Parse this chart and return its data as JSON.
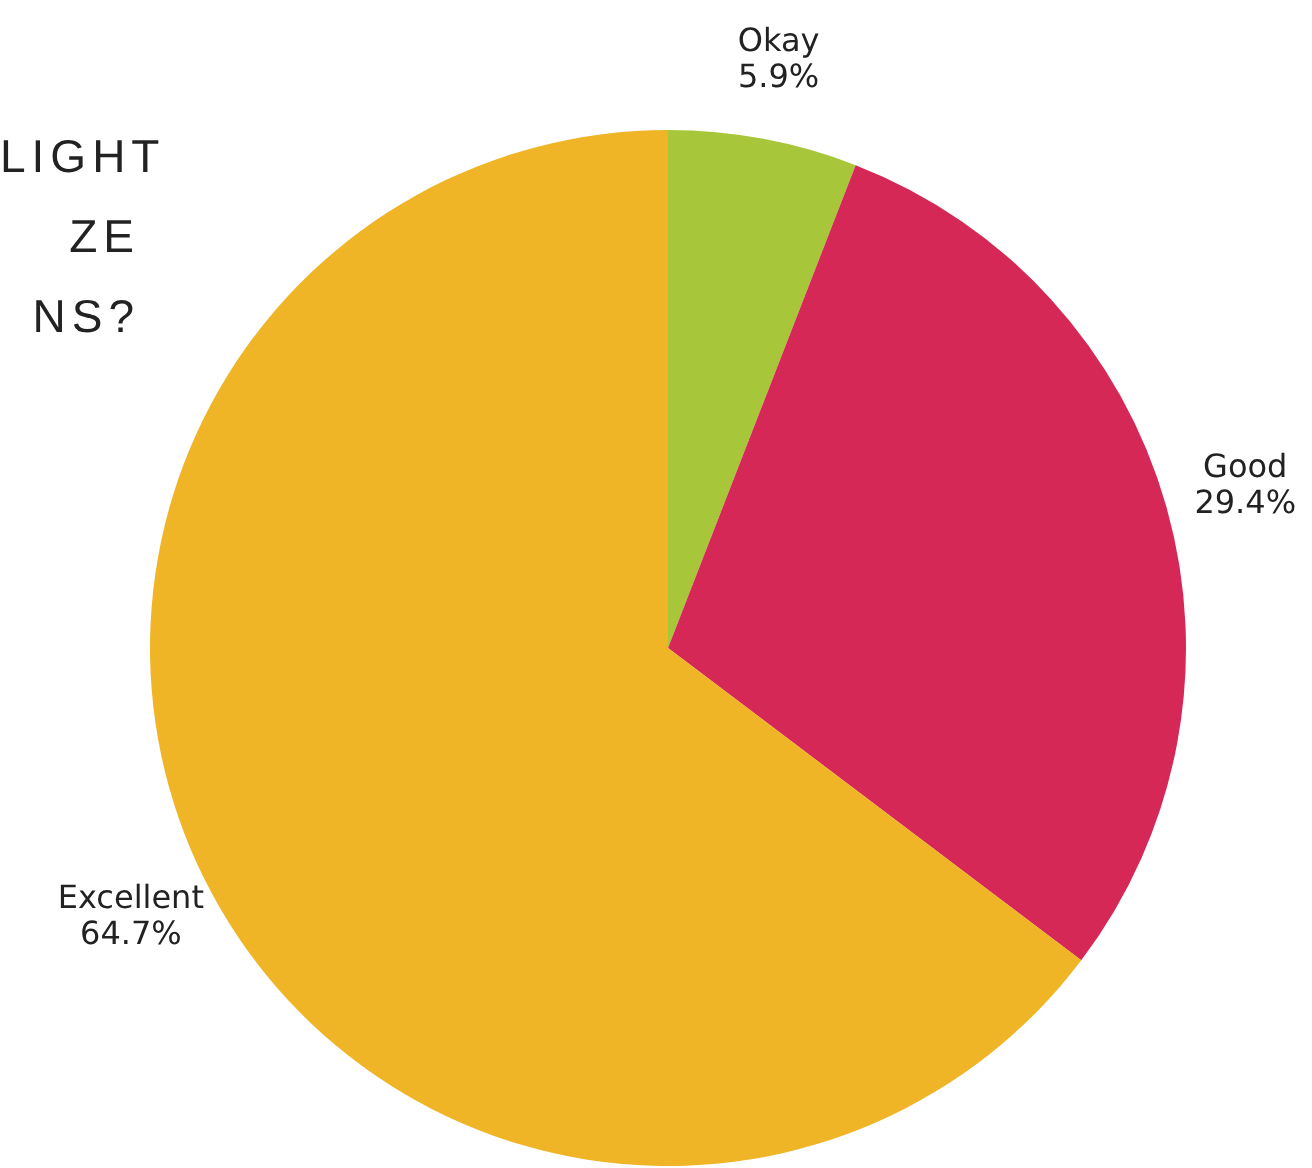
{
  "chart_data": {
    "type": "pie",
    "title": "LIGHT\nZE\nNS?",
    "categories": [
      "Okay",
      "Good",
      "Excellent"
    ],
    "values": [
      5.9,
      29.4,
      64.7
    ],
    "colors": [
      "#a8c63a",
      "#d62856",
      "#efb526"
    ],
    "legend": false,
    "value_labels": [
      "5.9%",
      "29.4%",
      "64.7%"
    ]
  }
}
